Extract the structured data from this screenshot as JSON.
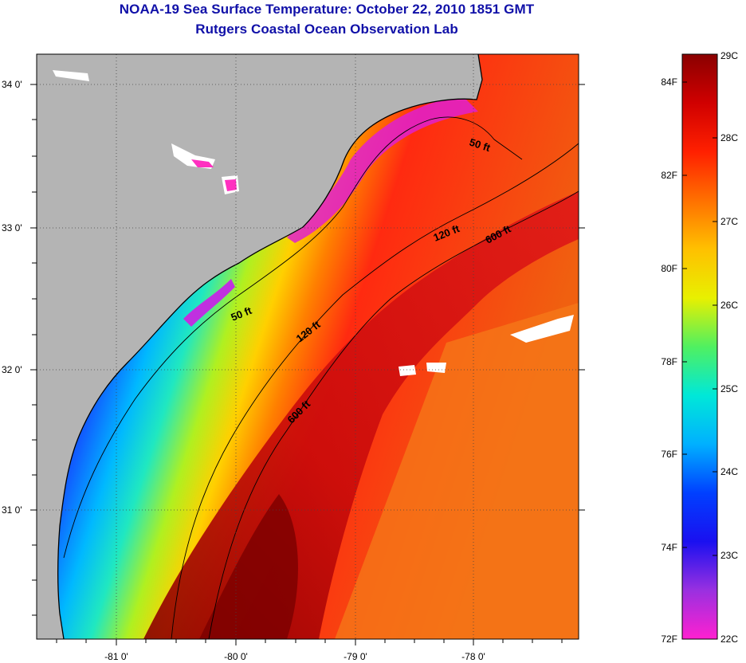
{
  "title": "NOAA-19 Sea Surface Temperature:  October 22, 2010 1851 GMT",
  "subtitle": "Rutgers Coastal Ocean Observation Lab",
  "map": {
    "lat_labels": [
      "34 0'",
      "33 0'",
      "32 0'",
      "31 0'"
    ],
    "lon_labels": [
      "-81 0'",
      "-80 0'",
      "-79 0'",
      "-78 0'"
    ],
    "contours": [
      {
        "label": "50 ft"
      },
      {
        "label": "50 ft"
      },
      {
        "label": "120 ft"
      },
      {
        "label": "120 ft"
      },
      {
        "label": "600 ft"
      },
      {
        "label": "600 ft"
      }
    ],
    "colors": {
      "land": "#b4b4b4",
      "coast": "#000000"
    }
  },
  "colorbar": {
    "fahrenheit_labels": [
      "84F",
      "82F",
      "80F",
      "78F",
      "76F",
      "74F",
      "72F"
    ],
    "celsius_labels": [
      "29C",
      "28C",
      "27C",
      "26C",
      "25C",
      "24C",
      "23C",
      "22C"
    ],
    "stops": [
      "#ff20d0",
      "#9a30e0",
      "#1a10f0",
      "#0040ff",
      "#00b0ff",
      "#00e8d8",
      "#50f060",
      "#e8f000",
      "#ffc000",
      "#ff7000",
      "#ff2000",
      "#d00000",
      "#8a0000"
    ]
  }
}
